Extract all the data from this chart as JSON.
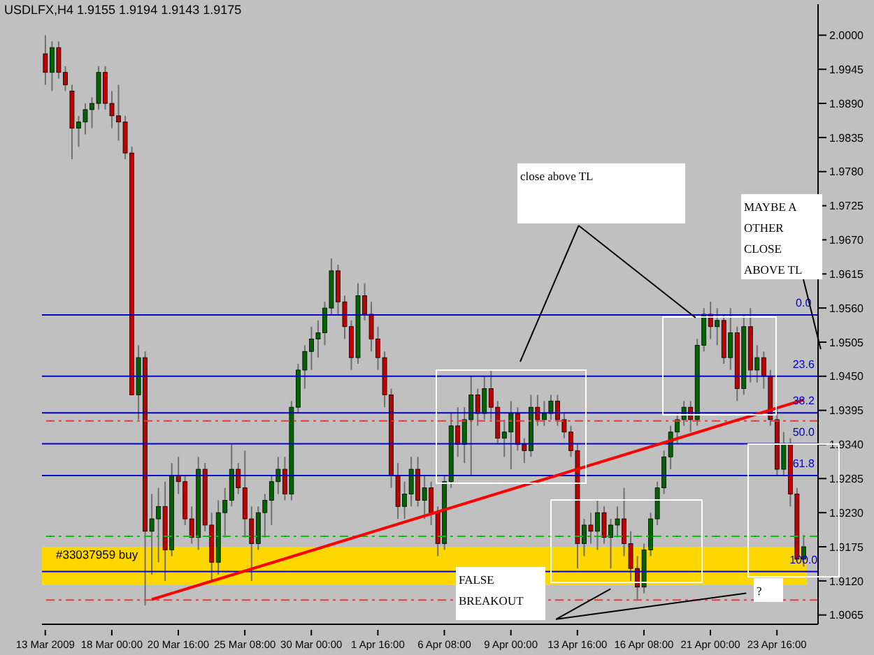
{
  "chart_data": {
    "type": "candlestick",
    "title": "USDLFX,H4 1.9155 1.9194 1.9143 1.9175",
    "categories": [
      "13 Mar 2009",
      null,
      null,
      null,
      null,
      null,
      null,
      null,
      null,
      null,
      "18 Mar 00:00",
      null,
      null,
      null,
      null,
      null,
      null,
      null,
      null,
      null,
      "20 Mar 16:00",
      null,
      null,
      null,
      null,
      null,
      null,
      null,
      null,
      null,
      "25 Mar 08:00",
      null,
      null,
      null,
      null,
      null,
      null,
      null,
      null,
      null,
      "30 Mar 00:00",
      null,
      null,
      null,
      null,
      null,
      null,
      null,
      null,
      null,
      "1 Apr 16:00",
      null,
      null,
      null,
      null,
      null,
      null,
      null,
      null,
      null,
      "6 Apr 08:00",
      null,
      null,
      null,
      null,
      null,
      null,
      null,
      null,
      null,
      "9 Apr 00:00",
      null,
      null,
      null,
      null,
      null,
      null,
      null,
      null,
      null,
      "13 Apr 16:00",
      null,
      null,
      null,
      null,
      null,
      null,
      null,
      null,
      null,
      "16 Apr 08:00",
      null,
      null,
      null,
      null,
      null,
      null,
      null,
      null,
      null,
      "21 Apr 00:00",
      null,
      null,
      null,
      null,
      null,
      null,
      null,
      null,
      null,
      "23 Apr 16:00",
      null,
      null,
      null,
      null
    ],
    "ohlc": [
      [
        1.997,
        2.0,
        1.992,
        1.994
      ],
      [
        1.994,
        1.999,
        1.991,
        1.998
      ],
      [
        1.998,
        1.999,
        1.993,
        1.994
      ],
      [
        1.994,
        1.995,
        1.991,
        1.992
      ],
      [
        1.991,
        1.992,
        1.98,
        1.985
      ],
      [
        1.985,
        1.987,
        1.982,
        1.986
      ],
      [
        1.986,
        1.989,
        1.984,
        1.988
      ],
      [
        1.988,
        1.99,
        1.985,
        1.989
      ],
      [
        1.989,
        1.995,
        1.988,
        1.994
      ],
      [
        1.994,
        1.995,
        1.988,
        1.989
      ],
      [
        1.989,
        1.991,
        1.985,
        1.987
      ],
      [
        1.987,
        1.992,
        1.983,
        1.986
      ],
      [
        1.986,
        1.987,
        1.98,
        1.981
      ],
      [
        1.981,
        1.982,
        1.942,
        1.942
      ],
      [
        1.942,
        1.95,
        1.938,
        1.948
      ],
      [
        1.948,
        1.949,
        1.908,
        1.92
      ],
      [
        1.92,
        1.926,
        1.913,
        1.922
      ],
      [
        1.922,
        1.927,
        1.915,
        1.924
      ],
      [
        1.924,
        1.928,
        1.912,
        1.917
      ],
      [
        1.917,
        1.931,
        1.916,
        1.929
      ],
      [
        1.929,
        1.932,
        1.926,
        1.928
      ],
      [
        1.928,
        1.929,
        1.921,
        1.922
      ],
      [
        1.922,
        1.924,
        1.918,
        1.919
      ],
      [
        1.919,
        1.932,
        1.917,
        1.93
      ],
      [
        1.93,
        1.931,
        1.92,
        1.921
      ],
      [
        1.921,
        1.923,
        1.912,
        1.915
      ],
      [
        1.915,
        1.925,
        1.913,
        1.923
      ],
      [
        1.923,
        1.927,
        1.919,
        1.925
      ],
      [
        1.925,
        1.934,
        1.924,
        1.93
      ],
      [
        1.93,
        1.931,
        1.926,
        1.927
      ],
      [
        1.927,
        1.933,
        1.919,
        1.922
      ],
      [
        1.922,
        1.924,
        1.912,
        1.918
      ],
      [
        1.918,
        1.924,
        1.917,
        1.923
      ],
      [
        1.923,
        1.926,
        1.919,
        1.925
      ],
      [
        1.925,
        1.929,
        1.921,
        1.928
      ],
      [
        1.928,
        1.932,
        1.926,
        1.93
      ],
      [
        1.93,
        1.932,
        1.925,
        1.926
      ],
      [
        1.926,
        1.941,
        1.925,
        1.94
      ],
      [
        1.94,
        1.947,
        1.939,
        1.946
      ],
      [
        1.946,
        1.95,
        1.943,
        1.949
      ],
      [
        1.949,
        1.953,
        1.946,
        1.951
      ],
      [
        1.951,
        1.954,
        1.948,
        1.952
      ],
      [
        1.952,
        1.957,
        1.95,
        1.956
      ],
      [
        1.956,
        1.964,
        1.955,
        1.962
      ],
      [
        1.962,
        1.963,
        1.955,
        1.957
      ],
      [
        1.957,
        1.958,
        1.951,
        1.953
      ],
      [
        1.953,
        1.954,
        1.946,
        1.948
      ],
      [
        1.948,
        1.96,
        1.947,
        1.958
      ],
      [
        1.958,
        1.96,
        1.954,
        1.955
      ],
      [
        1.955,
        1.957,
        1.949,
        1.951
      ],
      [
        1.951,
        1.953,
        1.946,
        1.948
      ],
      [
        1.948,
        1.949,
        1.94,
        1.942
      ],
      [
        1.942,
        1.943,
        1.927,
        1.929
      ],
      [
        1.929,
        1.931,
        1.922,
        1.924
      ],
      [
        1.924,
        1.928,
        1.922,
        1.926
      ],
      [
        1.926,
        1.932,
        1.924,
        1.93
      ],
      [
        1.93,
        1.932,
        1.924,
        1.925
      ],
      [
        1.925,
        1.929,
        1.922,
        1.927
      ],
      [
        1.927,
        1.928,
        1.921,
        1.923
      ],
      [
        1.923,
        1.924,
        1.916,
        1.918
      ],
      [
        1.918,
        1.929,
        1.917,
        1.928
      ],
      [
        1.928,
        1.939,
        1.927,
        1.937
      ],
      [
        1.937,
        1.94,
        1.932,
        1.934
      ],
      [
        1.934,
        1.94,
        1.931,
        1.938
      ],
      [
        1.938,
        1.945,
        1.929,
        1.942
      ],
      [
        1.942,
        1.943,
        1.937,
        1.939
      ],
      [
        1.939,
        1.945,
        1.938,
        1.943
      ],
      [
        1.943,
        1.946,
        1.938,
        1.94
      ],
      [
        1.94,
        1.941,
        1.934,
        1.935
      ],
      [
        1.935,
        1.938,
        1.932,
        1.936
      ],
      [
        1.936,
        1.941,
        1.93,
        1.939
      ],
      [
        1.939,
        1.94,
        1.933,
        1.934
      ],
      [
        1.934,
        1.935,
        1.931,
        1.933
      ],
      [
        1.933,
        1.942,
        1.932,
        1.94
      ],
      [
        1.94,
        1.942,
        1.937,
        1.938
      ],
      [
        1.938,
        1.941,
        1.937,
        1.939
      ],
      [
        1.939,
        1.942,
        1.938,
        1.941
      ],
      [
        1.941,
        1.942,
        1.937,
        1.938
      ],
      [
        1.938,
        1.939,
        1.935,
        1.936
      ],
      [
        1.936,
        1.937,
        1.932,
        1.933
      ],
      [
        1.933,
        1.934,
        1.914,
        1.918
      ],
      [
        1.918,
        1.922,
        1.916,
        1.921
      ],
      [
        1.921,
        1.923,
        1.918,
        1.92
      ],
      [
        1.92,
        1.925,
        1.917,
        1.923
      ],
      [
        1.923,
        1.924,
        1.918,
        1.919
      ],
      [
        1.919,
        1.922,
        1.914,
        1.921
      ],
      [
        1.921,
        1.924,
        1.919,
        1.922
      ],
      [
        1.922,
        1.927,
        1.916,
        1.918
      ],
      [
        1.918,
        1.92,
        1.912,
        1.914
      ],
      [
        1.914,
        1.916,
        1.909,
        1.911
      ],
      [
        1.911,
        1.918,
        1.91,
        1.917
      ],
      [
        1.917,
        1.923,
        1.916,
        1.922
      ],
      [
        1.922,
        1.928,
        1.921,
        1.927
      ],
      [
        1.927,
        1.933,
        1.926,
        1.932
      ],
      [
        1.932,
        1.937,
        1.93,
        1.936
      ],
      [
        1.936,
        1.939,
        1.934,
        1.938
      ],
      [
        1.938,
        1.941,
        1.937,
        1.94
      ],
      [
        1.94,
        1.941,
        1.936,
        1.938
      ],
      [
        1.938,
        1.951,
        1.937,
        1.95
      ],
      [
        1.95,
        1.956,
        1.949,
        1.955
      ],
      [
        1.955,
        1.957,
        1.951,
        1.953
      ],
      [
        1.953,
        1.956,
        1.95,
        1.954
      ],
      [
        1.954,
        1.955,
        1.947,
        1.948
      ],
      [
        1.948,
        1.956,
        1.946,
        1.952
      ],
      [
        1.952,
        1.953,
        1.941,
        1.943
      ],
      [
        1.943,
        1.955,
        1.942,
        1.953
      ],
      [
        1.953,
        1.956,
        1.944,
        1.946
      ],
      [
        1.946,
        1.95,
        1.944,
        1.948
      ],
      [
        1.948,
        1.949,
        1.943,
        1.945
      ],
      [
        1.945,
        1.946,
        1.937,
        1.938
      ],
      [
        1.938,
        1.94,
        1.929,
        1.93
      ],
      [
        1.93,
        1.936,
        1.929,
        1.934
      ],
      [
        1.934,
        1.935,
        1.924,
        1.926
      ],
      [
        1.926,
        1.927,
        1.915,
        1.9155
      ],
      [
        1.9155,
        1.9194,
        1.9143,
        1.9175
      ]
    ],
    "series": [
      {
        "type": "line",
        "color": "#ff0000",
        "values": [
          null,
          null,
          null,
          null,
          null,
          null,
          null,
          null,
          null,
          null,
          null,
          null,
          null,
          null,
          null,
          null,
          1.909,
          null,
          null,
          null,
          null,
          null,
          null,
          null,
          null,
          null,
          null,
          null,
          null,
          null,
          null,
          null,
          null,
          null,
          null,
          null,
          null,
          null,
          null,
          null,
          null,
          null,
          null,
          null,
          null,
          null,
          null,
          null,
          null,
          null,
          null,
          null,
          null,
          null,
          null,
          null,
          null,
          null,
          null,
          null,
          null,
          null,
          null,
          null,
          null,
          null,
          null,
          null,
          null,
          null,
          null,
          null,
          null,
          null,
          null,
          null,
          null,
          null,
          null,
          null,
          null,
          null,
          null,
          null,
          null,
          null,
          null,
          null,
          null,
          null,
          null,
          null,
          null,
          null,
          null,
          null,
          null,
          null,
          null,
          null,
          null,
          null,
          null,
          null,
          null,
          null,
          null,
          null,
          null,
          null,
          null,
          null,
          null,
          null,
          1.9412
        ]
      }
    ],
    "ylim": [
      1.905,
      2.005
    ],
    "yticks": [
      {
        "value": 2.0,
        "label": "2.0000"
      },
      {
        "value": 1.9945,
        "label": "1.9945"
      },
      {
        "value": 1.989,
        "label": "1.9890"
      },
      {
        "value": 1.9835,
        "label": "1.9835"
      },
      {
        "value": 1.978,
        "label": "1.9780"
      },
      {
        "value": 1.9725,
        "label": "1.9725"
      },
      {
        "value": 1.967,
        "label": "1.9670"
      },
      {
        "value": 1.9615,
        "label": "1.9615"
      },
      {
        "value": 1.956,
        "label": "1.9560"
      },
      {
        "value": 1.9505,
        "label": "1.9505"
      },
      {
        "value": 1.945,
        "label": "1.9450"
      },
      {
        "value": 1.9395,
        "label": "1.9395"
      },
      {
        "value": 1.934,
        "label": "1.9340"
      },
      {
        "value": 1.9285,
        "label": "1.9285"
      },
      {
        "value": 1.923,
        "label": "1.9230"
      },
      {
        "value": 1.9175,
        "label": "1.9175"
      },
      {
        "value": 1.912,
        "label": "1.9120"
      },
      {
        "value": 1.9065,
        "label": "1.9065"
      }
    ],
    "ref_lines": [
      {
        "axis": "y",
        "value": 1.9378,
        "label": null,
        "color": "#e04040",
        "line_style": "dashed"
      },
      {
        "axis": "y",
        "value": 1.9192,
        "label": "#33037959 buy",
        "color": "#00c000",
        "line_style": "dashed"
      },
      {
        "axis": "y",
        "value": 1.9089,
        "label": null,
        "color": "#e04040",
        "line_style": "dashed"
      },
      {
        "axis": "y",
        "value": 1.9549,
        "label": null,
        "color": "#0000cc",
        "line_style": "solid"
      },
      {
        "axis": "y",
        "value": 1.945,
        "label": null,
        "color": "#0000cc",
        "line_style": "solid"
      },
      {
        "axis": "y",
        "value": 1.9391,
        "label": null,
        "color": "#0000cc",
        "line_style": "solid"
      },
      {
        "axis": "y",
        "value": 1.9341,
        "label": null,
        "color": "#0000cc",
        "line_style": "solid"
      },
      {
        "axis": "y",
        "value": 1.929,
        "label": null,
        "color": "#0000cc",
        "line_style": "solid"
      },
      {
        "axis": "y",
        "value": 1.9135,
        "label": null,
        "color": "#0000cc",
        "line_style": "solid"
      }
    ],
    "bands": [
      {
        "axis": "y",
        "from": 1.9113,
        "to": 1.9175,
        "label": null,
        "color": "#ffd700"
      }
    ],
    "annotations": [
      "close above TL",
      "MAYBE A OTHER CLOSE ABOVE TL",
      "FALSE BREAKOUT",
      "?",
      {
        "text": "0.0",
        "y": 1.9549
      },
      {
        "text": "23.6",
        "y": 1.945
      },
      {
        "text": "38.2",
        "y": 1.9391
      },
      {
        "text": "50.0",
        "y": 1.9341
      },
      {
        "text": "61.8",
        "y": 1.929
      },
      {
        "text": "100.0",
        "y": 1.9135
      }
    ],
    "grid": false,
    "legend": false
  }
}
